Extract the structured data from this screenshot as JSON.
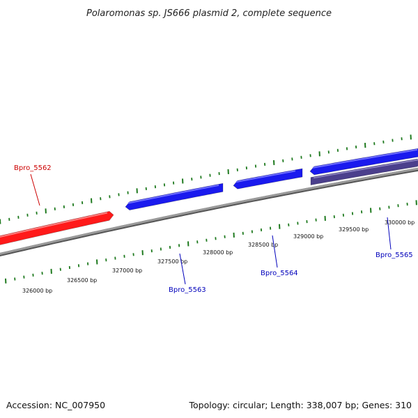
{
  "title": "Polaromonas sp. JS666 plasmid 2, complete sequence",
  "footer": {
    "accession": "Accession: NC_007950",
    "summary": "Topology: circular; Length: 338,007 bp; Genes: 310"
  },
  "colors": {
    "forward_gene": "#ff1a1a",
    "reverse_gene": "#1a1aee",
    "other_gene": "#4b3f8c",
    "backbone": "#8a8a8a",
    "ticks": "#1f7a1f",
    "label_fwd": "#cc0000",
    "label_rev": "#0000bb"
  },
  "bp_labels": [
    "326000 bp",
    "326500 bp",
    "327000 bp",
    "327500 bp",
    "328000 bp",
    "328500 bp",
    "329000 bp",
    "329500 bp",
    "330000 bp"
  ],
  "genes": [
    {
      "label": "Bpro_5562",
      "strand": "forward"
    },
    {
      "label": "Bpro_5563",
      "strand": "reverse"
    },
    {
      "label": "Bpro_5564",
      "strand": "reverse"
    },
    {
      "label": "Bpro_5565",
      "strand": "reverse"
    }
  ]
}
